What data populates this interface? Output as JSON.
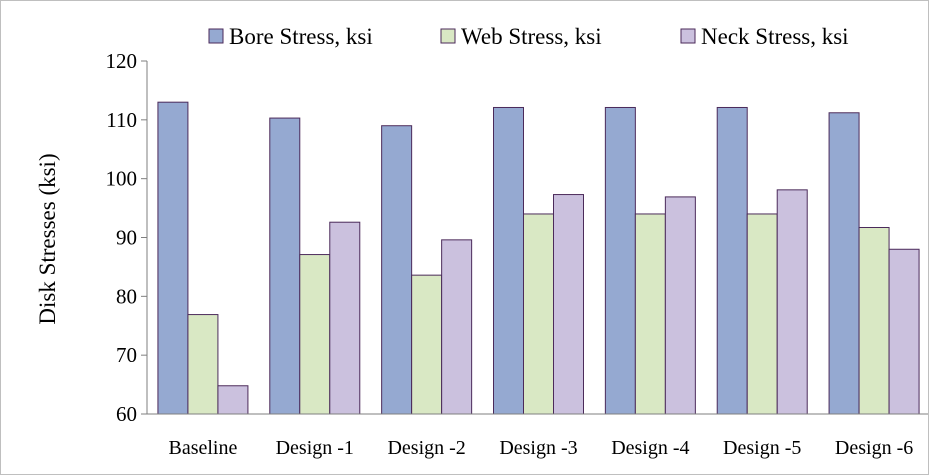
{
  "chart_data": {
    "type": "bar",
    "title": "",
    "xlabel": "",
    "ylabel": "Disk Stresses (ksi)",
    "ylim": [
      60,
      120
    ],
    "yticks": [
      60,
      70,
      80,
      90,
      100,
      110,
      120
    ],
    "grid": false,
    "legend_position": "top",
    "categories": [
      "Baseline",
      "Design -1",
      "Design -2",
      "Design -3",
      "Design -4",
      "Design -5",
      "Design -6"
    ],
    "series": [
      {
        "name": "Bore Stress, ksi",
        "color": "#95a9d1",
        "values": [
          113.0,
          110.3,
          109.0,
          112.1,
          112.1,
          112.1,
          111.2
        ]
      },
      {
        "name": "Web Stress, ksi",
        "color": "#d9e8c4",
        "values": [
          76.9,
          87.1,
          83.6,
          94.0,
          94.0,
          94.0,
          91.7
        ]
      },
      {
        "name": "Neck Stress, ksi",
        "color": "#cbc1de",
        "values": [
          64.8,
          92.6,
          89.6,
          97.3,
          96.9,
          98.1,
          88.0
        ]
      }
    ],
    "bar_outline_color": "#4b2a5a"
  }
}
